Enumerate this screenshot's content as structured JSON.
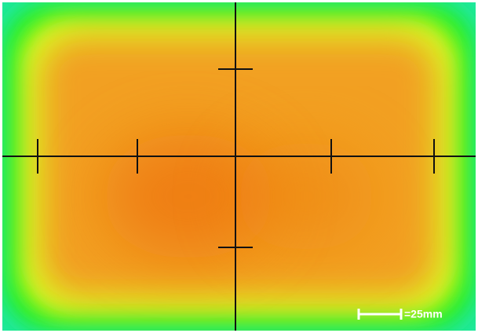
{
  "scale_bar": {
    "label": "=25mm"
  }
}
